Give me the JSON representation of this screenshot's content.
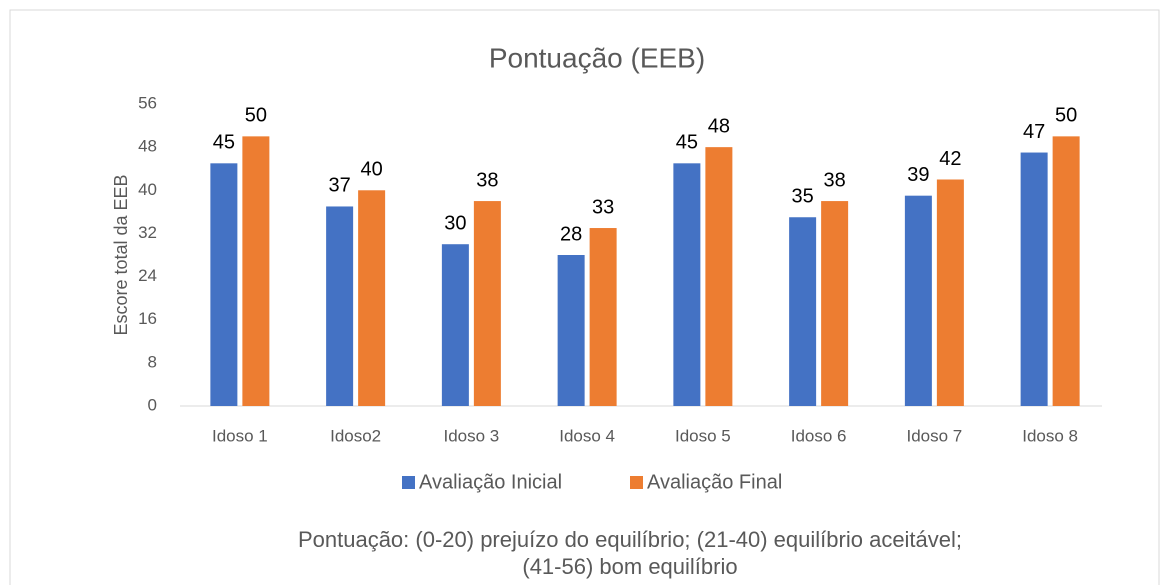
{
  "chart_data": {
    "type": "bar",
    "title": "Pontuação (EEB)",
    "y_label": "Escore total da EEB",
    "categories": [
      "Idoso 1",
      "Idoso2",
      "Idoso 3",
      "Idoso 4",
      "Idoso 5",
      "Idoso 6",
      "Idoso 7",
      "Idoso 8"
    ],
    "series": [
      {
        "name": "Avaliação Inicial",
        "color": "#4472c4",
        "values": [
          45,
          37,
          30,
          28,
          45,
          35,
          39,
          47
        ]
      },
      {
        "name": "Avaliação Final",
        "color": "#ed7d31",
        "values": [
          50,
          40,
          38,
          33,
          48,
          38,
          42,
          50
        ]
      }
    ],
    "ylim": [
      0,
      56
    ],
    "yticks": [
      0,
      8,
      16,
      24,
      32,
      40,
      48,
      56
    ],
    "grid": false,
    "legend": "bottom",
    "note": [
      "Pontuação: (0-20) prejuízo do equilíbrio; (21-40) equilíbrio aceitável;",
      "(41-56) bom equilíbrio"
    ]
  }
}
